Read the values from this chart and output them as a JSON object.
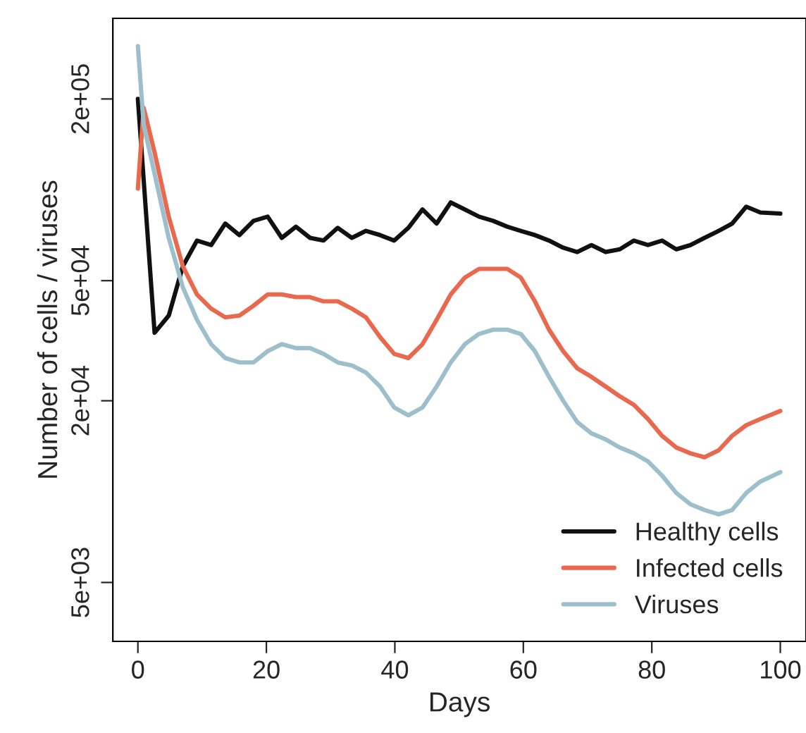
{
  "chart_data": {
    "type": "line",
    "xlabel": "Days",
    "ylabel": "Number of cells / viruses",
    "log": "y",
    "grid": false,
    "legend": "bottom right",
    "line_style": "solid",
    "marker": "none",
    "xlim": [
      -3.9,
      104
    ],
    "xticks": [
      0,
      20,
      40,
      60,
      80,
      100
    ],
    "ylim": [
      3190,
      370000
    ],
    "yticks": [
      {
        "value": 5000,
        "label": "5e+03"
      },
      {
        "value": 20000,
        "label": "2e+04"
      },
      {
        "value": 50000,
        "label": "5e+04"
      },
      {
        "value": 200000,
        "label": "2e+05"
      }
    ],
    "series": [
      {
        "name": "Healthy cells",
        "color": "#111111",
        "x": [
          0,
          2.6,
          4.8,
          7.0,
          9.2,
          11.4,
          13.6,
          15.8,
          18.0,
          20.2,
          22.4,
          24.6,
          26.8,
          28.9,
          31.1,
          33.3,
          35.5,
          37.7,
          39.9,
          42.1,
          44.3,
          46.5,
          48.7,
          50.9,
          53.1,
          55.3,
          57.5,
          59.6,
          61.8,
          64.0,
          66.2,
          68.4,
          70.6,
          72.8,
          75.0,
          77.2,
          79.4,
          81.6,
          83.8,
          86.0,
          88.2,
          90.4,
          92.5,
          94.7,
          96.9,
          100
        ],
        "values": [
          200000,
          33600,
          38300,
          55800,
          67900,
          65600,
          77300,
          70800,
          78900,
          81500,
          69300,
          75500,
          69300,
          67900,
          74800,
          69300,
          73100,
          70800,
          67900,
          74800,
          86100,
          77300,
          90800,
          86100,
          81500,
          78900,
          75500,
          73100,
          70800,
          67900,
          64300,
          62200,
          65600,
          62200,
          63500,
          67900,
          65600,
          67900,
          63500,
          65600,
          69300,
          73100,
          77300,
          87900,
          84100,
          83400
        ]
      },
      {
        "name": "Infected cells",
        "color": "#e9694f",
        "x": [
          0,
          0.9,
          2.6,
          4.8,
          7.0,
          9.2,
          11.4,
          13.6,
          15.8,
          18.0,
          20.2,
          22.4,
          24.6,
          26.8,
          28.9,
          31.1,
          33.3,
          35.5,
          37.7,
          39.9,
          42.1,
          44.3,
          46.5,
          48.7,
          50.9,
          53.1,
          55.3,
          57.5,
          59.6,
          61.8,
          64.0,
          66.2,
          68.4,
          70.6,
          72.8,
          75.0,
          77.2,
          79.4,
          81.6,
          83.8,
          86.0,
          88.2,
          90.4,
          92.5,
          94.7,
          96.9,
          100
        ],
        "values": [
          101000,
          187000,
          133000,
          81500,
          55800,
          45000,
          40400,
          37800,
          38300,
          41300,
          45000,
          45000,
          44100,
          44100,
          42700,
          42700,
          40400,
          37800,
          32500,
          28600,
          27700,
          30800,
          37100,
          45000,
          51200,
          54700,
          54700,
          54700,
          51200,
          42700,
          34400,
          29200,
          25600,
          24000,
          22300,
          20700,
          19400,
          17400,
          15300,
          14000,
          13400,
          13000,
          13700,
          15300,
          16600,
          17400,
          18500
        ]
      },
      {
        "name": "Viruses",
        "color": "#9dbfcc",
        "x": [
          0,
          0.9,
          2.6,
          4.8,
          7.0,
          9.2,
          11.4,
          13.6,
          15.8,
          18.0,
          20.2,
          22.4,
          24.6,
          26.8,
          28.9,
          31.1,
          33.3,
          35.5,
          37.7,
          39.9,
          42.1,
          44.3,
          46.5,
          48.7,
          50.9,
          53.1,
          55.3,
          57.5,
          59.6,
          61.8,
          64.0,
          66.2,
          68.4,
          70.6,
          72.8,
          75.0,
          77.2,
          79.4,
          81.6,
          83.8,
          86.0,
          88.2,
          90.4,
          92.5,
          94.7,
          96.9,
          100
        ],
        "values": [
          299000,
          164000,
          113000,
          69300,
          47500,
          37100,
          30800,
          27700,
          26800,
          26800,
          29200,
          30800,
          29900,
          29900,
          28600,
          26800,
          26200,
          24800,
          22300,
          19000,
          17900,
          19000,
          22300,
          26800,
          30800,
          33300,
          34400,
          34400,
          33300,
          29200,
          24000,
          20000,
          17000,
          15600,
          14900,
          14000,
          13400,
          12600,
          11300,
          9900,
          9080,
          8690,
          8410,
          8690,
          9900,
          10800,
          11600
        ]
      }
    ]
  }
}
